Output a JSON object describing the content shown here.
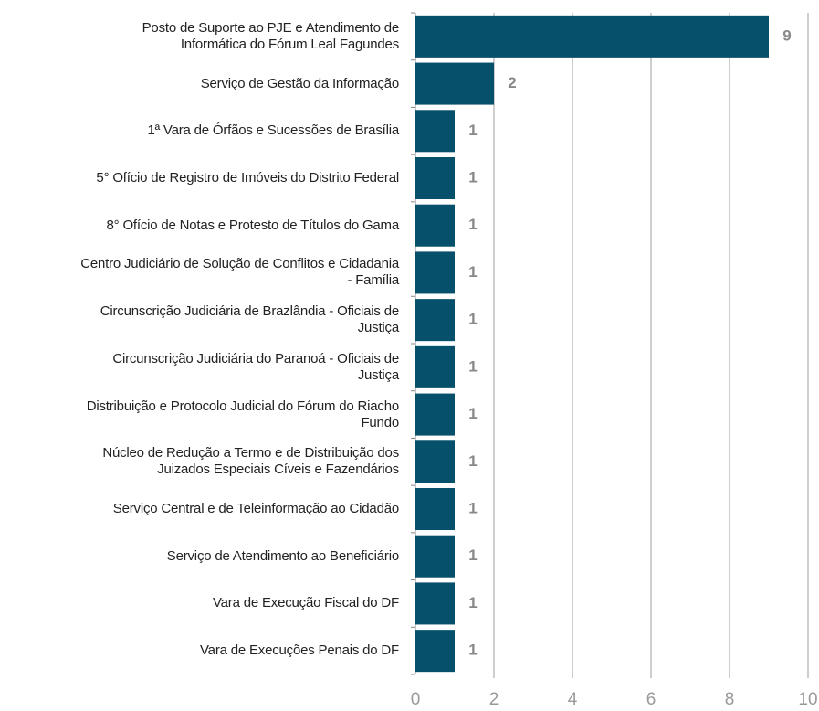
{
  "chart_data": {
    "type": "bar",
    "orientation": "horizontal",
    "categories": [
      "Posto de Suporte ao PJE e Atendimento de\nInformática do Fórum Leal Fagundes",
      "Serviço de Gestão da Informação",
      "1ª Vara de Órfãos e Sucessões de Brasília",
      "5° Ofício de Registro de Imóveis do Distrito Federal",
      "8° Ofício de Notas e Protesto de Títulos do Gama",
      "Centro Judiciário de Solução de Conflitos e Cidadania\n- Família",
      "Circunscrição Judiciária de Brazlândia - Oficiais de\nJustiça",
      "Circunscrição Judiciária do Paranoá - Oficiais de\nJustiça",
      "Distribuição e Protocolo Judicial do Fórum do Riacho\nFundo",
      "Núcleo de Redução a Termo e de Distribuição dos\nJuizados Especiais Cíveis e Fazendários",
      "Serviço Central e de Teleinformação ao Cidadão",
      "Serviço de Atendimento ao Beneficiário",
      "Vara de Execução Fiscal do DF",
      "Vara de Execuções Penais do DF"
    ],
    "values": [
      9,
      2,
      1,
      1,
      1,
      1,
      1,
      1,
      1,
      1,
      1,
      1,
      1,
      1
    ],
    "color": "#07506c",
    "xlim": [
      0,
      10
    ],
    "xticks": [
      0,
      2,
      4,
      6,
      8,
      10
    ],
    "grid": true
  }
}
